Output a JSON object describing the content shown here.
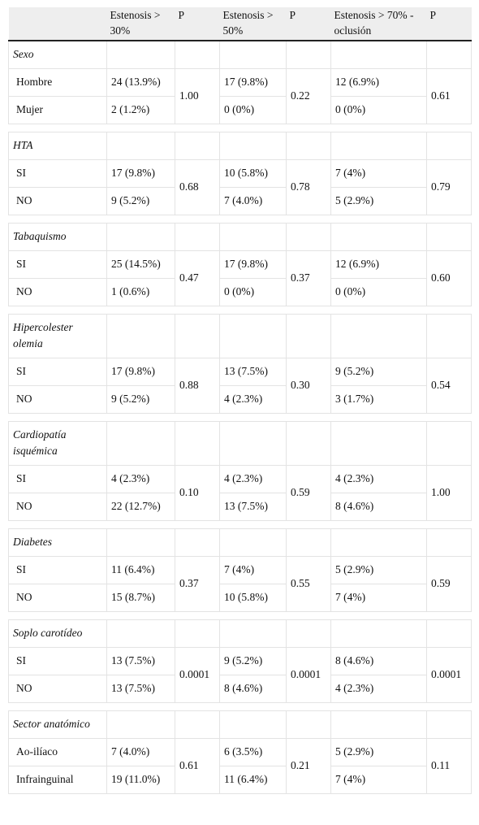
{
  "header": {
    "col1": "",
    "col2": "Estenosis > 30%",
    "col3": "P",
    "col4": "Estenosis > 50%",
    "col5": "P",
    "col6": "Estenosis > 70% - oclusión",
    "col7": "P"
  },
  "groups": [
    {
      "name": "Sexo",
      "p30": "1.00",
      "p50": "0.22",
      "p70": "0.61",
      "rows": [
        {
          "label": "Hombre",
          "e30": "24 (13.9%)",
          "e50": "17 (9.8%)",
          "e70": "12 (6.9%)"
        },
        {
          "label": "Mujer",
          "e30": "2 (1.2%)",
          "e50": "0 (0%)",
          "e70": "0 (0%)"
        }
      ]
    },
    {
      "name": "HTA",
      "p30": "0.68",
      "p50": "0.78",
      "p70": "0.79",
      "rows": [
        {
          "label": "SI",
          "e30": "17 (9.8%)",
          "e50": "10 (5.8%)",
          "e70": "7 (4%)"
        },
        {
          "label": "NO",
          "e30": "9 (5.2%)",
          "e50": "7 (4.0%)",
          "e70": "5 (2.9%)"
        }
      ]
    },
    {
      "name": "Tabaquismo",
      "p30": "0.47",
      "p50": "0.37",
      "p70": "0.60",
      "rows": [
        {
          "label": "SI",
          "e30": "25 (14.5%)",
          "e50": "17 (9.8%)",
          "e70": "12 (6.9%)"
        },
        {
          "label": "NO",
          "e30": "1 (0.6%)",
          "e50": "0 (0%)",
          "e70": "0 (0%)"
        }
      ]
    },
    {
      "name": "Hipercolester olemia",
      "p30": "0.88",
      "p50": "0.30",
      "p70": "0.54",
      "rows": [
        {
          "label": "SI",
          "e30": "17 (9.8%)",
          "e50": "13 (7.5%)",
          "e70": "9 (5.2%)"
        },
        {
          "label": "NO",
          "e30": "9 (5.2%)",
          "e50": "4 (2.3%)",
          "e70": "3 (1.7%)"
        }
      ]
    },
    {
      "name": "Cardiopatía isquémica",
      "p30": "0.10",
      "p50": "0.59",
      "p70": "1.00",
      "rows": [
        {
          "label": "SI",
          "e30": "4 (2.3%)",
          "e50": "4 (2.3%)",
          "e70": "4 (2.3%)"
        },
        {
          "label": "NO",
          "e30": "22 (12.7%)",
          "e50": "13 (7.5%)",
          "e70": "8 (4.6%)"
        }
      ]
    },
    {
      "name": "Diabetes",
      "p30": "0.37",
      "p50": "0.55",
      "p70": "0.59",
      "rows": [
        {
          "label": "SI",
          "e30": "11 (6.4%)",
          "e50": "7 (4%)",
          "e70": "5 (2.9%)"
        },
        {
          "label": "NO",
          "e30": "15 (8.7%)",
          "e50": "10 (5.8%)",
          "e70": "7 (4%)"
        }
      ]
    },
    {
      "name": "Soplo carotídeo",
      "p30": "0.0001",
      "p50": "0.0001",
      "p70": "0.0001",
      "rows": [
        {
          "label": "SI",
          "e30": "13 (7.5%)",
          "e50": "9 (5.2%)",
          "e70": "8 (4.6%)"
        },
        {
          "label": "NO",
          "e30": "13 (7.5%)",
          "e50": "8 (4.6%)",
          "e70": "4 (2.3%)"
        }
      ]
    },
    {
      "name": "Sector anatómico",
      "p30": "0.61",
      "p50": "0.21",
      "p70": "0.11",
      "rows": [
        {
          "label": "Ao-ilíaco",
          "e30": "7 (4.0%)",
          "e50": "6 (3.5%)",
          "e70": "5 (2.9%)"
        },
        {
          "label": "Infrainguinal",
          "e30": "19 (11.0%)",
          "e50": "11 (6.4%)",
          "e70": "7 (4%)"
        }
      ]
    }
  ]
}
